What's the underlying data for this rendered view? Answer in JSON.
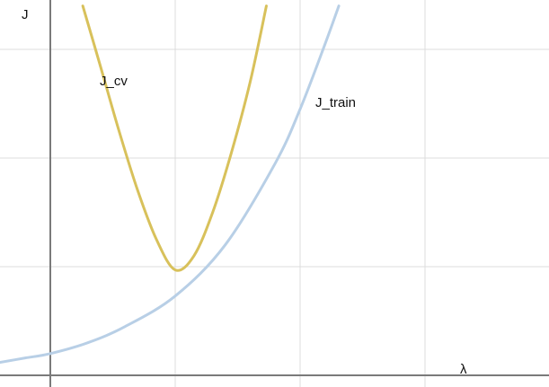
{
  "chart_data": {
    "type": "line",
    "title": "",
    "xlabel": "λ",
    "ylabel": "J",
    "xlim": [
      -0.4,
      4
    ],
    "ylim": [
      -0.1,
      3.4
    ],
    "grid": true,
    "series": [
      {
        "name": "J_cv",
        "color": "#d8c15b",
        "points": [
          [
            0.26,
            3.4
          ],
          [
            0.4,
            2.85
          ],
          [
            0.55,
            2.25
          ],
          [
            0.7,
            1.7
          ],
          [
            0.85,
            1.25
          ],
          [
            1.0,
            0.97
          ],
          [
            1.15,
            1.1
          ],
          [
            1.3,
            1.5
          ],
          [
            1.45,
            2.05
          ],
          [
            1.6,
            2.7
          ],
          [
            1.73,
            3.4
          ]
        ]
      },
      {
        "name": "J_train",
        "color": "#b8cfe6",
        "points": [
          [
            -0.4,
            0.12
          ],
          [
            -0.2,
            0.16
          ],
          [
            0.0,
            0.2
          ],
          [
            0.3,
            0.3
          ],
          [
            0.6,
            0.45
          ],
          [
            1.0,
            0.73
          ],
          [
            1.4,
            1.2
          ],
          [
            1.8,
            1.95
          ],
          [
            2.0,
            2.45
          ],
          [
            2.2,
            3.05
          ],
          [
            2.31,
            3.4
          ]
        ]
      }
    ]
  }
}
